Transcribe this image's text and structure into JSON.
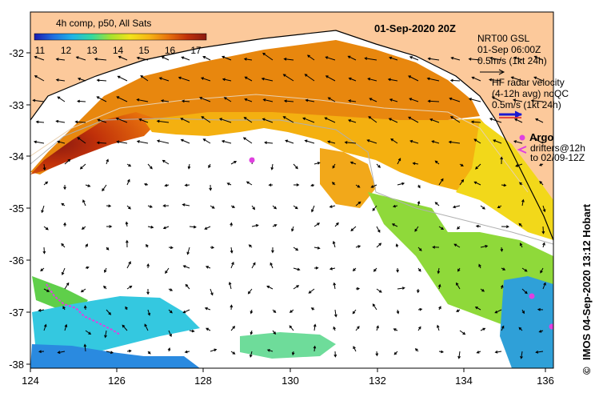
{
  "map": {
    "date_label": "01-Sep-2020 20Z",
    "credit": "IMOS 04-Sep-2020 13:12 Hobart",
    "copyright_symbol": "©",
    "colorbar": {
      "title": "4h comp, p50, All Sats",
      "ticks": [
        "11",
        "12",
        "13",
        "14",
        "15",
        "16",
        "17"
      ],
      "colors": [
        "#1a1ab0",
        "#1e6fe0",
        "#1fb4e6",
        "#33d9a0",
        "#a6e22e",
        "#f2e31a",
        "#f7b514",
        "#e8720c",
        "#c0300a",
        "#8a1a10"
      ]
    },
    "annotations": {
      "gsl_line1": "NRT00 GSL",
      "gsl_line2": "01-Sep 06:00Z",
      "gsl_line3": "0.5m/s (1kt 24h)",
      "hf_line1": "HF radar velocity",
      "hf_line2": "(4-12h avg) noQC",
      "hf_line3": "0.5m/s (1kt 24h)",
      "argo_label": "Argo",
      "drifters_line1": "drifters@12h",
      "drifters_line2": "to 02/09-12Z"
    },
    "axes": {
      "x_ticks": [
        "124",
        "126",
        "128",
        "130",
        "132",
        "134",
        "136"
      ],
      "y_ticks": [
        "-32",
        "-33",
        "-34",
        "-35",
        "-36",
        "-37",
        "-38"
      ]
    },
    "colors": {
      "land": "#fcc99b",
      "no_data": "#ffffff",
      "argo": "#e040e0",
      "hf_arrow": "#1a1ad0"
    }
  }
}
